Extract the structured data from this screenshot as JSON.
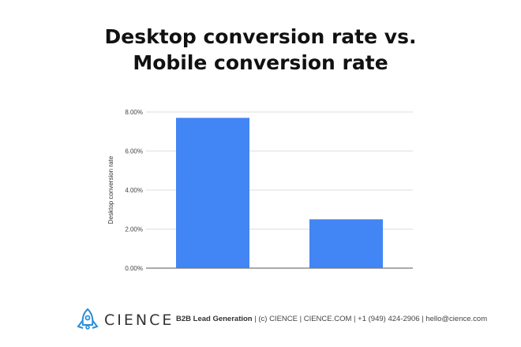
{
  "title_lines": [
    "Desktop conversion rate vs.",
    "Mobile conversion rate"
  ],
  "chart_data": {
    "type": "bar",
    "title": "Desktop conversion rate vs. Mobile conversion rate",
    "categories": [
      "",
      ""
    ],
    "values": [
      7.7,
      2.5
    ],
    "xlabel": "",
    "ylabel": "Desktop conversion rate",
    "ylim": [
      0,
      8
    ],
    "yticks": [
      "0.00%",
      "2.00%",
      "4.00%",
      "6.00%",
      "8.00%"
    ],
    "grid": true,
    "bar_color": "#4285f4"
  },
  "footer": {
    "brand": "CIENCE",
    "tagline": "B2B Lead Generation",
    "rest": " | (c) CIENCE | CIENCE.COM | +1 (949) 424-2906 | hello@cience.com",
    "logo_color": "#2a8fd8"
  }
}
